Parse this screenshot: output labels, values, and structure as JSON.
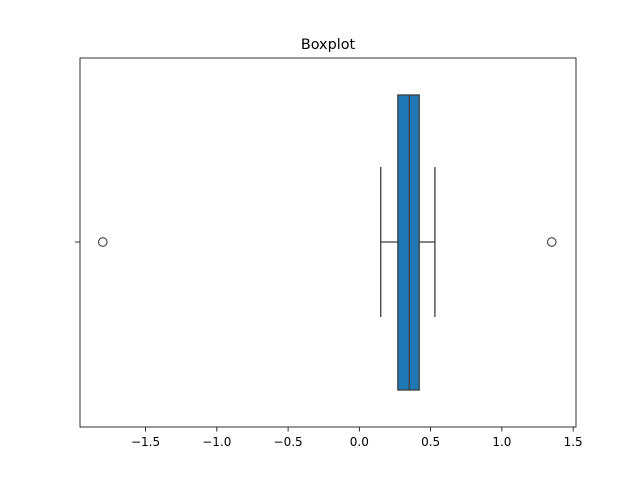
{
  "chart_data": {
    "type": "boxplot",
    "title": "Boxplot",
    "xlabel": "",
    "ylabel": "",
    "orientation": "horizontal",
    "xlim": [
      -1.96,
      1.52
    ],
    "xticks": [
      -1.5,
      -1.0,
      -0.5,
      0.0,
      0.5,
      1.0,
      1.5
    ],
    "xtick_labels": [
      "−1.5",
      "−1.0",
      "−0.5",
      "0.0",
      "0.5",
      "1.0",
      "1.5"
    ],
    "grid": false,
    "legend": "none",
    "box": {
      "whisker_low": 0.15,
      "q1": 0.27,
      "median": 0.35,
      "q3": 0.42,
      "whisker_high": 0.53
    },
    "outliers": [
      -1.8,
      1.35
    ],
    "colors": {
      "box_fill": "#1f77b4",
      "lines": "#3d3d3d",
      "axes": "#000000"
    }
  }
}
